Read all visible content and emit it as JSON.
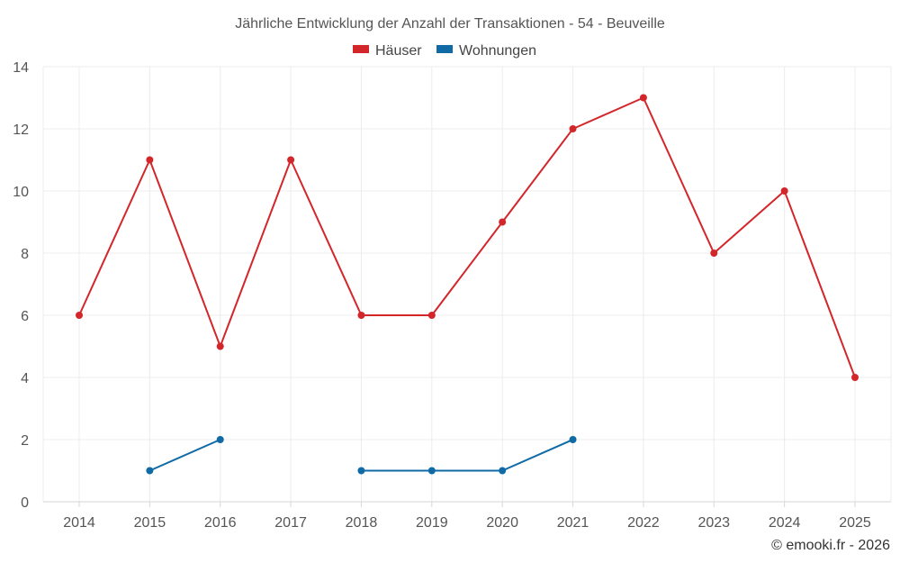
{
  "chart_data": {
    "type": "line",
    "title": "Jährliche Entwicklung der Anzahl der Transaktionen - 54 - Beuveille",
    "categories": [
      "2014",
      "2015",
      "2016",
      "2017",
      "2018",
      "2019",
      "2020",
      "2021",
      "2022",
      "2023",
      "2024",
      "2025"
    ],
    "ylim": [
      0,
      14
    ],
    "yticks": [
      0,
      2,
      4,
      6,
      8,
      10,
      12,
      14
    ],
    "grid": true,
    "legend_position": "top-center",
    "series": [
      {
        "name": "Häuser",
        "color": "#d3262b",
        "values": [
          6,
          11,
          5,
          11,
          6,
          6,
          9,
          12,
          13,
          8,
          10,
          4
        ]
      },
      {
        "name": "Wohnungen",
        "color": "#0f6aa6",
        "values": [
          null,
          1,
          2,
          null,
          1,
          1,
          1,
          2,
          null,
          null,
          null,
          null
        ]
      }
    ],
    "credit": "© emooki.fr - 2026"
  }
}
